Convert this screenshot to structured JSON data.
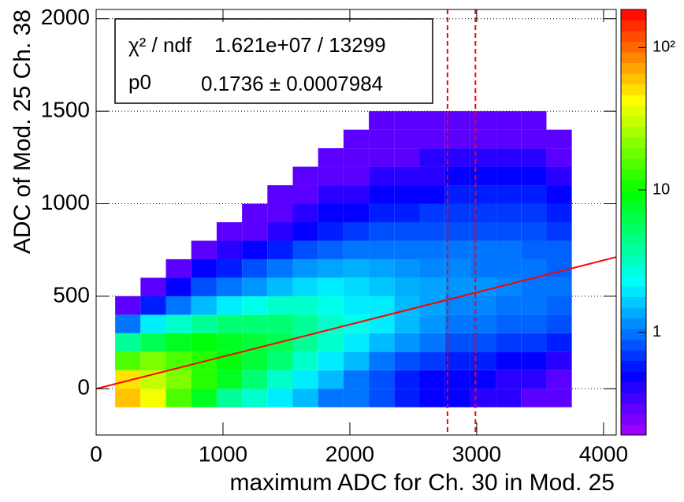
{
  "chart_data": {
    "type": "heatmap",
    "x_label": "maximum ADC for Ch. 30 in Mod. 25",
    "y_label": "ADC of Mod. 25  Ch. 38",
    "xlim": [
      0,
      4100
    ],
    "xticks": [
      0,
      1000,
      2000,
      3000,
      4000
    ],
    "ylim": [
      -250,
      2050
    ],
    "yticks": [
      0,
      500,
      1000,
      1500,
      2000
    ],
    "grid": true,
    "z_log": true,
    "zlim": [
      0.19,
      185
    ],
    "zticks": [
      1,
      10,
      {
        "value": 100,
        "label": "10²"
      }
    ],
    "xbins": [
      150,
      350,
      550,
      750,
      950,
      1150,
      1350,
      1550,
      1750,
      1950,
      2150,
      2350,
      2550,
      2750,
      2950,
      3150,
      3350,
      3550,
      3750
    ],
    "ybins": [
      -100,
      0,
      100,
      200,
      300,
      400,
      500,
      600,
      700,
      800,
      900,
      1000,
      1100,
      1200,
      1300,
      1400,
      1500
    ],
    "z": [
      [
        60,
        40,
        15,
        8,
        4,
        3,
        2,
        1.5,
        1,
        1,
        0.8,
        0.6,
        0.5,
        0.5,
        0.4,
        0.4,
        0.3,
        0.3
      ],
      [
        50,
        30,
        20,
        12,
        8,
        5,
        3,
        2,
        1.5,
        1,
        0.8,
        0.6,
        0.5,
        0.5,
        0.5,
        0.4,
        0.4,
        0.3
      ],
      [
        15,
        20,
        15,
        12,
        9,
        7,
        5,
        3,
        2,
        1.5,
        1,
        0.8,
        0.7,
        0.6,
        0.6,
        0.5,
        0.5,
        0.4
      ],
      [
        4,
        6,
        8,
        9,
        8,
        7,
        6,
        4,
        3,
        2,
        1.5,
        1.2,
        1,
        0.8,
        0.8,
        0.7,
        0.7,
        0.6
      ],
      [
        1,
        2,
        3,
        4,
        5,
        5,
        5,
        4,
        3,
        2.5,
        2,
        1.5,
        1.2,
        1,
        1,
        0.9,
        0.9,
        0.8
      ],
      [
        0.3,
        0.6,
        1,
        1.5,
        2,
        2.5,
        3,
        3,
        2.5,
        2,
        2,
        1.5,
        1.3,
        1.1,
        1.1,
        1,
        1,
        0.9
      ],
      [
        0,
        0.3,
        0.5,
        0.8,
        1,
        1.2,
        1.5,
        1.8,
        2,
        1.8,
        1.6,
        1.4,
        1.3,
        1.2,
        1.2,
        1.1,
        1,
        1
      ],
      [
        0,
        0,
        0.3,
        0.5,
        0.6,
        0.8,
        1,
        1.2,
        1.3,
        1.4,
        1.3,
        1.2,
        1.1,
        1.1,
        1,
        1,
        1,
        0.9
      ],
      [
        0,
        0,
        0,
        0.3,
        0.4,
        0.5,
        0.6,
        0.8,
        0.9,
        1,
        1,
        1,
        1,
        1,
        1,
        1,
        0.9,
        0.9
      ],
      [
        0,
        0,
        0,
        0,
        0.3,
        0.3,
        0.4,
        0.5,
        0.6,
        0.7,
        0.8,
        0.8,
        0.8,
        0.8,
        0.8,
        0.8,
        0.8,
        0.7
      ],
      [
        0,
        0,
        0,
        0,
        0,
        0.3,
        0.3,
        0.4,
        0.5,
        0.5,
        0.6,
        0.6,
        0.7,
        0.7,
        0.7,
        0.7,
        0.7,
        0.6
      ],
      [
        0,
        0,
        0,
        0,
        0,
        0,
        0.3,
        0.3,
        0.4,
        0.4,
        0.5,
        0.5,
        0.5,
        0.6,
        0.6,
        0.6,
        0.6,
        0.5
      ],
      [
        0,
        0,
        0,
        0,
        0,
        0,
        0,
        0.3,
        0.3,
        0.3,
        0.4,
        0.4,
        0.4,
        0.5,
        0.5,
        0.5,
        0.5,
        0.4
      ],
      [
        0,
        0,
        0,
        0,
        0,
        0,
        0,
        0,
        0.3,
        0.3,
        0.3,
        0.3,
        0.4,
        0.4,
        0.4,
        0.4,
        0.4,
        0.3
      ],
      [
        0,
        0,
        0,
        0,
        0,
        0,
        0,
        0,
        0,
        0.3,
        0.3,
        0.3,
        0.3,
        0.3,
        0.3,
        0.3,
        0.3,
        0.3
      ],
      [
        0,
        0,
        0,
        0,
        0,
        0,
        0,
        0,
        0,
        0,
        0.3,
        0.3,
        0.3,
        0.3,
        0.3,
        0.3,
        0.3,
        0
      ]
    ],
    "fit": {
      "color": "#ff0000",
      "p0": 0.1736,
      "chi2_name": "χ² / ndf",
      "chi2_label": "1.621e+07 / 13299",
      "p0_name": "p0",
      "p0_label": "0.1736 ± 0.0007984"
    },
    "vlines": [
      2770,
      2990
    ],
    "vline_color": "#ff0000"
  }
}
